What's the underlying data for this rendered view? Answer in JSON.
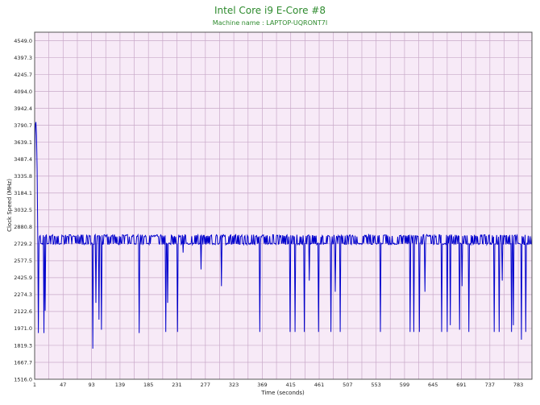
{
  "chart_data": {
    "type": "line",
    "title": "Intel Core i9 E-Core #8",
    "subtitle": "Machine name : LAPTOP-UQRONT7I",
    "xlabel": "Time (seconds)",
    "ylabel": "Clock Speed (MHz)",
    "xlim": [
      1,
      805
    ],
    "ylim": [
      1516.0,
      4625.0
    ],
    "x_ticks": [
      1,
      47,
      93,
      139,
      185,
      231,
      277,
      323,
      369,
      415,
      461,
      507,
      553,
      599,
      645,
      691,
      737,
      783
    ],
    "y_ticks": [
      "1516.0",
      "1667.7",
      "1819.3",
      "1971.0",
      "2122.6",
      "2274.3",
      "2425.9",
      "2577.5",
      "2729.2",
      "2880.8",
      "3032.5",
      "3184.1",
      "3335.8",
      "3487.4",
      "3639.1",
      "3790.7",
      "3942.4",
      "4094.0",
      "4245.7",
      "4397.3",
      "4549.0"
    ],
    "grid": true,
    "base_level": 2800,
    "low_level": 2729,
    "startup_spike": [
      [
        1,
        3335
      ],
      [
        2,
        3790
      ],
      [
        3,
        3820
      ],
      [
        4,
        3700
      ],
      [
        5,
        3400
      ],
      [
        6,
        2800
      ]
    ],
    "dips": [
      [
        7,
        1930
      ],
      [
        16,
        1930
      ],
      [
        18,
        2130
      ],
      [
        95,
        1790
      ],
      [
        100,
        2200
      ],
      [
        105,
        2050
      ],
      [
        109,
        1960
      ],
      [
        170,
        1930
      ],
      [
        213,
        1940
      ],
      [
        216,
        2200
      ],
      [
        232,
        1940
      ],
      [
        241,
        2650
      ],
      [
        270,
        2500
      ],
      [
        303,
        2350
      ],
      [
        365,
        1940
      ],
      [
        414,
        1940
      ],
      [
        422,
        1940
      ],
      [
        437,
        1940
      ],
      [
        445,
        2400
      ],
      [
        460,
        1940
      ],
      [
        480,
        1940
      ],
      [
        487,
        2300
      ],
      [
        495,
        1940
      ],
      [
        560,
        1940
      ],
      [
        608,
        1940
      ],
      [
        614,
        1940
      ],
      [
        623,
        1940
      ],
      [
        632,
        2300
      ],
      [
        659,
        1940
      ],
      [
        668,
        1940
      ],
      [
        673,
        2000
      ],
      [
        688,
        1960
      ],
      [
        692,
        2350
      ],
      [
        703,
        1940
      ],
      [
        744,
        1940
      ],
      [
        752,
        1940
      ],
      [
        757,
        2400
      ],
      [
        772,
        1940
      ],
      [
        775,
        2000
      ],
      [
        788,
        1870
      ],
      [
        795,
        1940
      ]
    ],
    "series": [
      {
        "color": "#0000cc"
      }
    ]
  }
}
